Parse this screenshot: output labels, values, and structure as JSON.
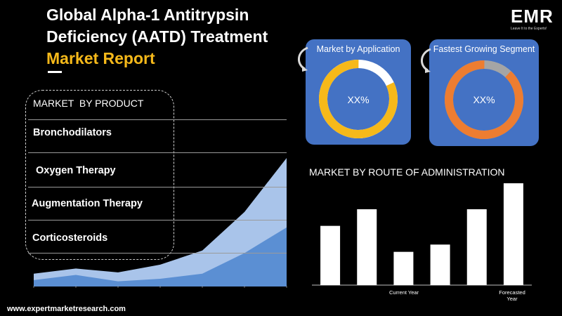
{
  "header": {
    "title_line1": "Global Alpha-1 Antitrypsin",
    "title_line2": "Deficiency (AATD) Treatment",
    "title_accent": "Market Report"
  },
  "logo": {
    "mark": "EMR",
    "tagline": "Leave It to the Experts!"
  },
  "product_panel": {
    "heading": "MARKET  BY PRODUCT",
    "items": [
      "Bronchodilators",
      "Oxygen Therapy",
      "Augmentation Therapy",
      "Corticosteroids"
    ]
  },
  "cards": [
    {
      "title": "Market by Application",
      "value": "XX%",
      "ring_color": "#f6b91a",
      "rest_color": "#ffffff",
      "fraction": 0.82
    },
    {
      "title": "Fastest Growing Segment",
      "value": "XX%",
      "ring_color": "#ed7d31",
      "rest_color": "#a5a5a5",
      "fraction": 0.88
    }
  ],
  "footer": {
    "url": "www.expertmarketresearch.com"
  },
  "colors": {
    "accent": "#f6b91a",
    "card_bg": "#4472c4",
    "area_light": "#a9c4ea",
    "area_dark": "#5b8fd3"
  },
  "chart_data": [
    {
      "type": "area",
      "x": [
        0,
        1,
        2,
        3,
        4,
        5,
        6
      ],
      "series": [
        {
          "values": [
            1.0,
            1.4,
            1.1,
            1.7,
            2.8,
            5.8,
            10.0
          ]
        },
        {
          "values": [
            0.5,
            0.9,
            0.4,
            0.6,
            1.0,
            2.6,
            4.6
          ]
        }
      ],
      "ylim": [
        0,
        10
      ],
      "grid": true
    },
    {
      "type": "bar",
      "title": "MARKET BY ROUTE OF ADMINISTRATION",
      "categories": [
        "",
        "",
        "Current Year",
        "",
        "",
        "Forecasted Year"
      ],
      "values": [
        57,
        73,
        32,
        39,
        73,
        98
      ],
      "ylim": [
        0,
        100
      ]
    }
  ]
}
